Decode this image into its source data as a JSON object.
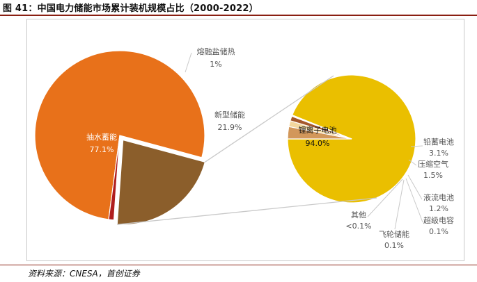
{
  "figure": {
    "title": "图 41：中国电力储能市场累计装机规模占比（2000-2022）",
    "source": "资料来源：CNESA，首创证券"
  },
  "colors": {
    "title_rule": "#8a1f12",
    "frame": "#c8c8c8",
    "connector": "#c9c9c9",
    "label_dark": "#555555"
  },
  "chart_data": [
    {
      "type": "pie",
      "series": [
        {
          "name": "抽水蓄能",
          "value": 77.1,
          "label": "77.1%",
          "color": "#e8711a"
        },
        {
          "name": "新型储能",
          "value": 21.9,
          "label": "21.9%",
          "color": "#8b5e2b",
          "exploded": true
        },
        {
          "name": "熔融盐储热",
          "value": 1.0,
          "label": "1%",
          "color": "#b01e1e"
        }
      ]
    },
    {
      "type": "pie",
      "series": [
        {
          "name": "锂离子电池",
          "value": 94.0,
          "label": "94.0%",
          "color": "#eabf00"
        },
        {
          "name": "铅蓄电池",
          "value": 3.1,
          "label": "3.1%",
          "color": "#d2975a"
        },
        {
          "name": "压缩空气",
          "value": 1.5,
          "label": "1.5%",
          "color": "#f3d79e"
        },
        {
          "name": "液流电池",
          "value": 1.2,
          "label": "1.2%",
          "color": "#a5582b"
        },
        {
          "name": "超级电容",
          "value": 0.1,
          "label": "0.1%",
          "color": "#7a4a1e"
        },
        {
          "name": "飞轮储能",
          "value": 0.1,
          "label": "0.1%",
          "color": "#b35a00"
        },
        {
          "name": "其他",
          "value": 0.1,
          "label": "<0.1%",
          "color": "#c89c3a"
        }
      ]
    }
  ]
}
